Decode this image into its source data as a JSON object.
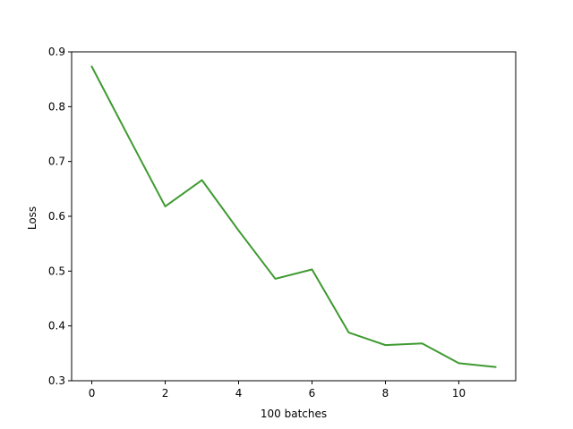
{
  "chart_data": {
    "type": "line",
    "title": "",
    "xlabel": "100 batches",
    "ylabel": "Loss",
    "xlim": [
      -0.55,
      11.55
    ],
    "ylim": [
      0.3,
      0.9
    ],
    "xticks": [
      0,
      2,
      4,
      6,
      8,
      10
    ],
    "yticks": [
      0.3,
      0.4,
      0.5,
      0.6,
      0.7,
      0.8,
      0.9
    ],
    "grid": false,
    "legend": "none",
    "series": [
      {
        "color": "#3e9a30",
        "x": [
          0,
          1,
          2,
          3,
          4,
          5,
          6,
          7,
          8,
          9,
          10,
          11
        ],
        "values": [
          0.873,
          0.745,
          0.618,
          0.666,
          0.574,
          0.486,
          0.503,
          0.388,
          0.365,
          0.368,
          0.332,
          0.325
        ]
      }
    ]
  }
}
